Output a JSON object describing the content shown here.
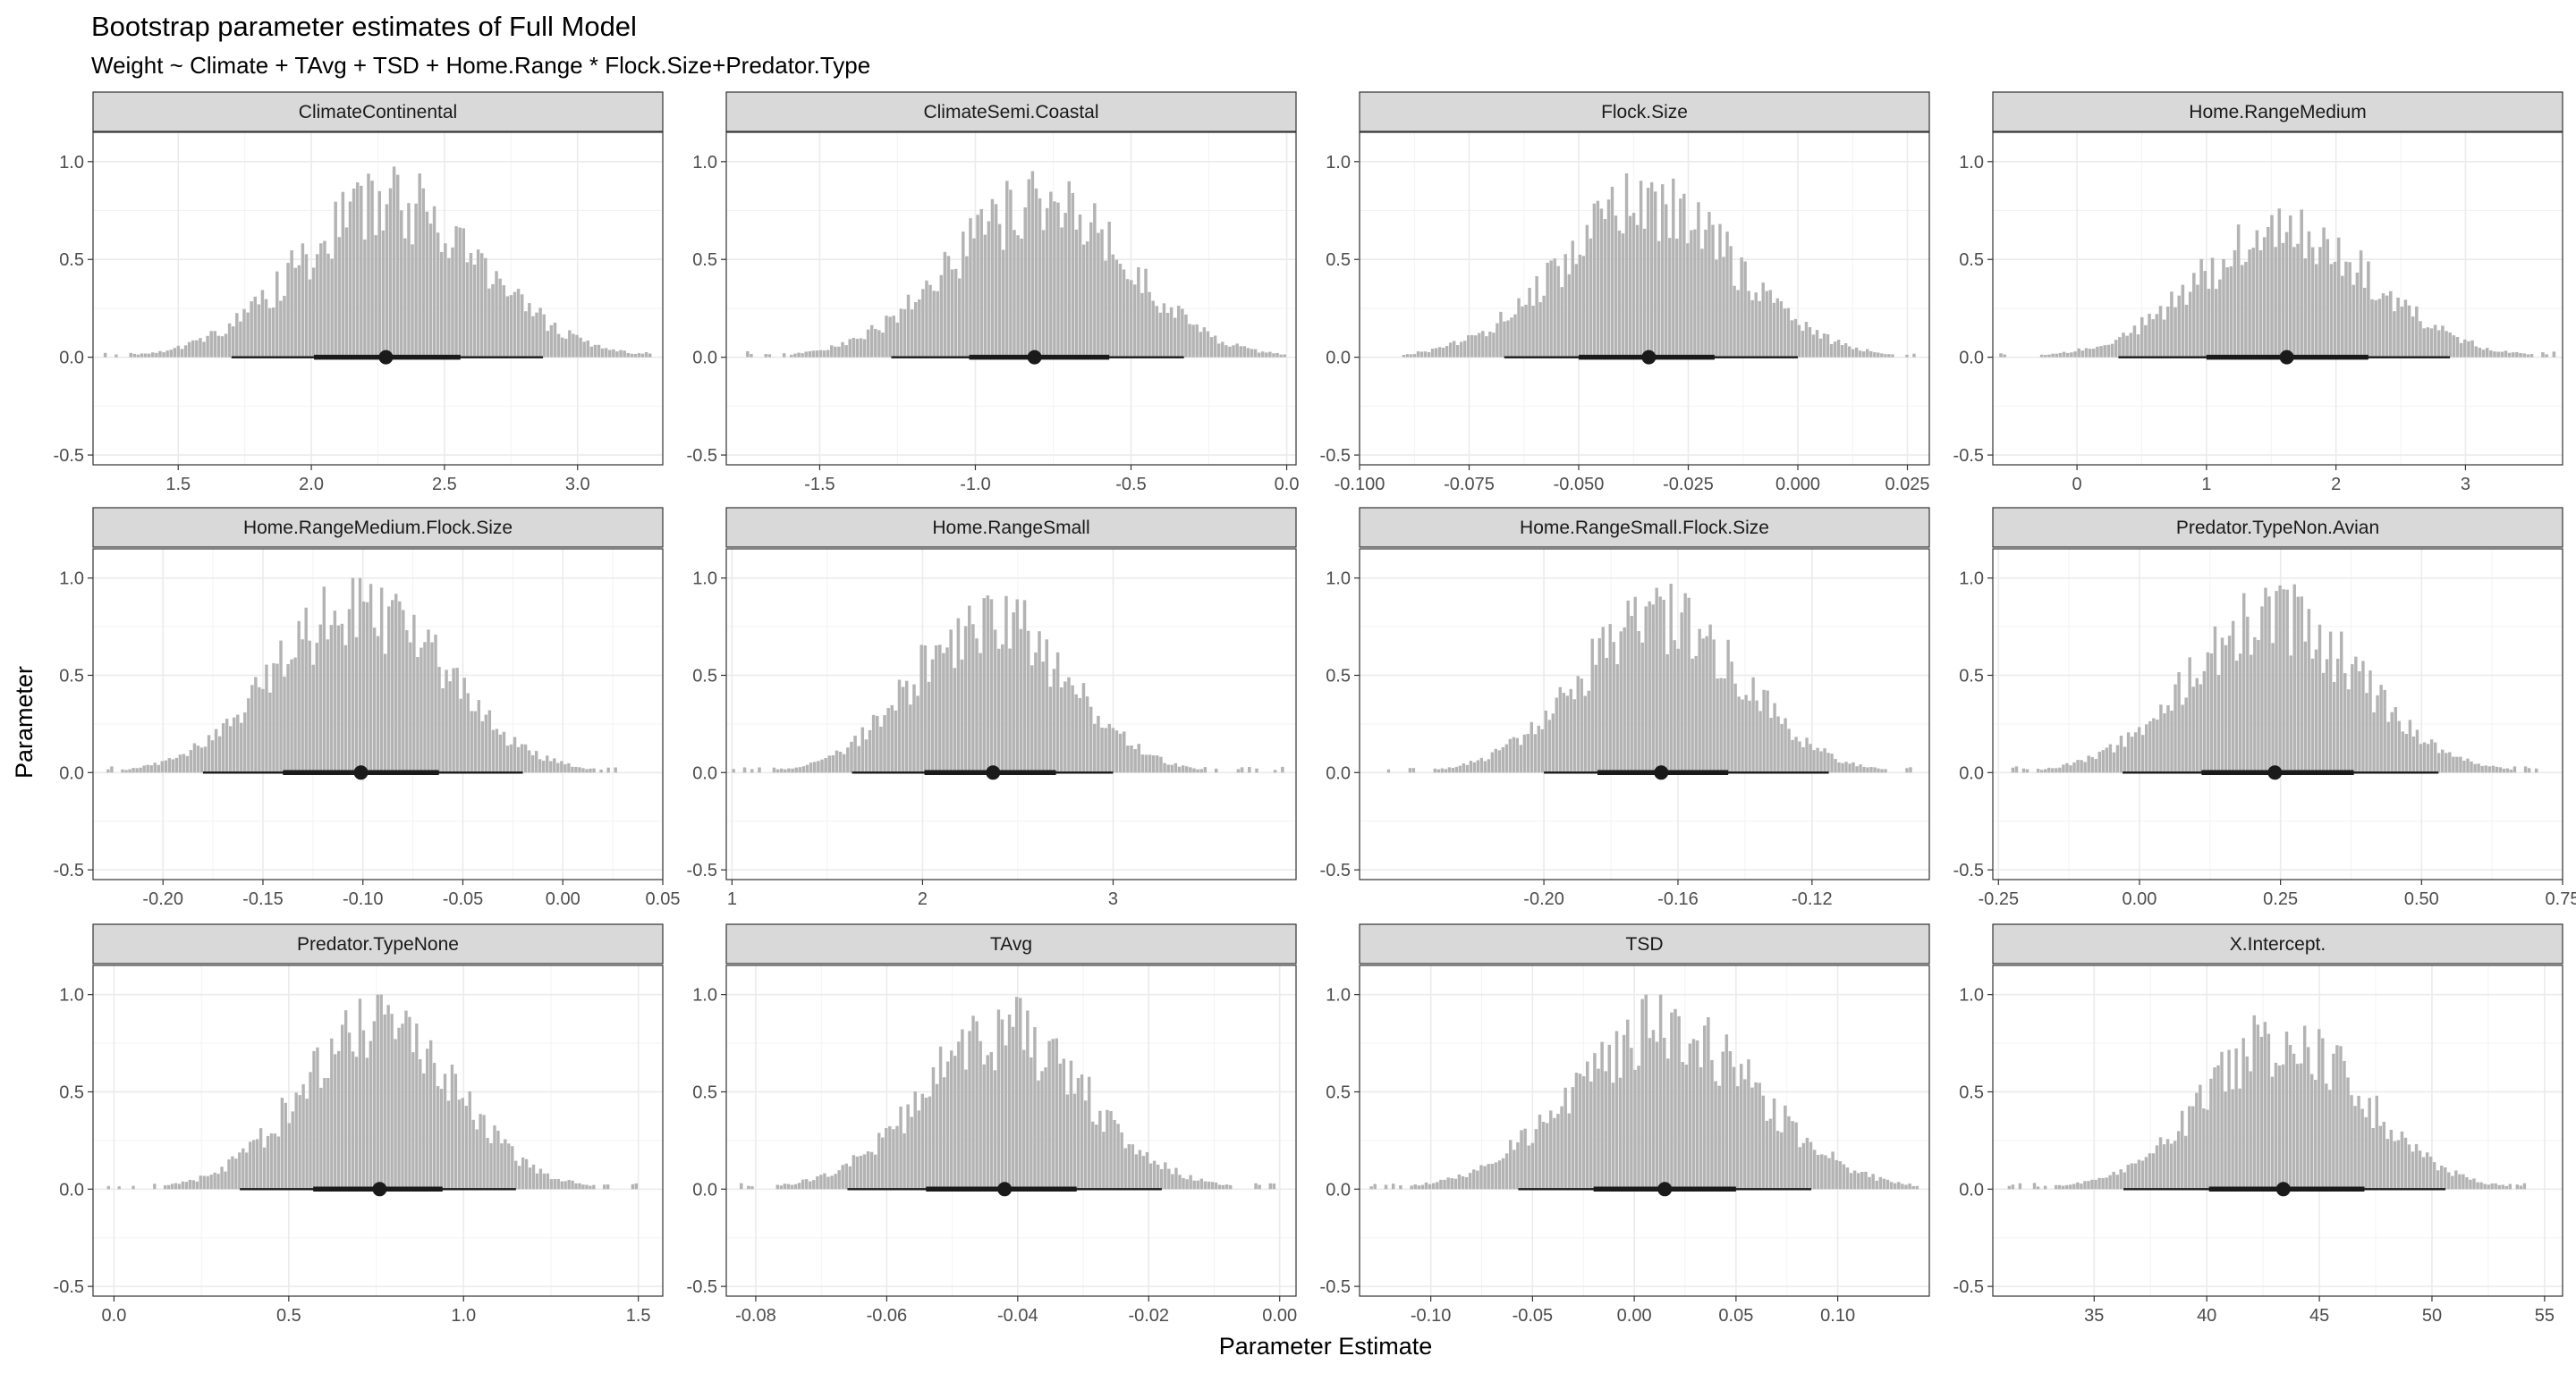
{
  "chart_data": {
    "type": "histogram-facets",
    "title": "Bootstrap parameter estimates of Full Model",
    "subtitle": "Weight ~ Climate + TAvg + TSD + Home.Range * Flock.Size+Predator.Type",
    "xlabel": "Parameter Estimate",
    "ylabel": "Parameter",
    "ylim": [
      -0.55,
      1.15
    ],
    "yticks": [
      -0.5,
      0.0,
      0.5,
      1.0
    ],
    "grid": true,
    "colors": {
      "bars": "#b3b3b3",
      "strip": "#d9d9d9",
      "interval": "#1a1a1a",
      "grid": "#ebebeb"
    },
    "facets": [
      {
        "name": "ClimateContinental",
        "xlim": [
          1.18,
          3.32
        ],
        "xticks": [
          1.5,
          2.0,
          2.5,
          3.0
        ],
        "xtick_labels": [
          "1.5",
          "2.0",
          "2.5",
          "3.0"
        ],
        "center": 2.3,
        "sd": 0.34,
        "peak": 0.82,
        "support": [
          1.22,
          3.28
        ],
        "interval_outer": [
          1.7,
          2.87
        ],
        "interval_inner": [
          2.01,
          2.56
        ],
        "point": 2.28
      },
      {
        "name": "ClimateSemi.Coastal",
        "xlim": [
          -1.8,
          0.03
        ],
        "xticks": [
          -1.5,
          -1.0,
          -0.5,
          0.0
        ],
        "xtick_labels": [
          "-1.5",
          "-1.0",
          "-0.5",
          "0.0"
        ],
        "center": -0.8,
        "sd": 0.28,
        "peak": 0.82,
        "support": [
          -1.76,
          0.0
        ],
        "interval_outer": [
          -1.27,
          -0.33
        ],
        "interval_inner": [
          -1.02,
          -0.57
        ],
        "point": -0.81
      },
      {
        "name": "Flock.Size",
        "xlim": [
          -0.1,
          0.03
        ],
        "xticks": [
          -0.1,
          -0.075,
          -0.05,
          -0.025,
          0.0,
          0.025
        ],
        "xtick_labels": [
          "-0.100",
          "-0.075",
          "-0.050",
          "-0.025",
          "0.000",
          "0.025"
        ],
        "center": -0.034,
        "sd": 0.02,
        "peak": 0.8,
        "support": [
          -0.096,
          0.027
        ],
        "interval_outer": [
          -0.067,
          0.0
        ],
        "interval_inner": [
          -0.05,
          -0.019
        ],
        "point": -0.034
      },
      {
        "name": "Home.RangeMedium",
        "xlim": [
          -0.65,
          3.75
        ],
        "xticks": [
          0,
          1,
          2,
          3
        ],
        "xtick_labels": [
          "0",
          "1",
          "2",
          "3"
        ],
        "center": 1.62,
        "sd": 0.68,
        "peak": 0.66,
        "support": [
          -0.6,
          3.7
        ],
        "interval_outer": [
          0.32,
          2.88
        ],
        "interval_inner": [
          1.0,
          2.25
        ],
        "point": 1.62
      },
      {
        "name": "Home.RangeMedium.Flock.Size",
        "xlim": [
          -0.235,
          0.05
        ],
        "xticks": [
          -0.2,
          -0.15,
          -0.1,
          -0.05,
          0.0,
          0.05
        ],
        "xtick_labels": [
          "-0.20",
          "-0.15",
          "-0.10",
          "-0.05",
          "0.00",
          "0.05"
        ],
        "center": -0.101,
        "sd": 0.042,
        "peak": 0.88,
        "support": [
          -0.23,
          0.04
        ],
        "interval_outer": [
          -0.18,
          -0.02
        ],
        "interval_inner": [
          -0.14,
          -0.062
        ],
        "point": -0.101
      },
      {
        "name": "Home.RangeSmall",
        "xlim": [
          0.97,
          3.96
        ],
        "xticks": [
          1,
          2,
          3
        ],
        "xtick_labels": [
          "1",
          "2",
          "3"
        ],
        "center": 2.36,
        "sd": 0.4,
        "peak": 0.82,
        "support": [
          1.0,
          3.9
        ],
        "interval_outer": [
          1.63,
          3.0
        ],
        "interval_inner": [
          2.01,
          2.7
        ],
        "point": 2.37
      },
      {
        "name": "Home.RangeSmall.Flock.Size",
        "xlim": [
          -0.255,
          -0.085
        ],
        "xticks": [
          -0.2,
          -0.16,
          -0.12
        ],
        "xtick_labels": [
          "-0.20",
          "-0.16",
          "-0.12"
        ],
        "center": -0.165,
        "sd": 0.024,
        "peak": 0.84,
        "support": [
          -0.25,
          -0.09
        ],
        "interval_outer": [
          -0.2,
          -0.115
        ],
        "interval_inner": [
          -0.184,
          -0.145
        ],
        "point": -0.165
      },
      {
        "name": "Predator.TypeNon.Avian",
        "xlim": [
          -0.26,
          0.75
        ],
        "xticks": [
          -0.25,
          0.0,
          0.25,
          0.5,
          0.75
        ],
        "xtick_labels": [
          "-0.25",
          "0.00",
          "0.25",
          "0.50",
          "0.75"
        ],
        "center": 0.24,
        "sd": 0.15,
        "peak": 0.82,
        "support": [
          -0.24,
          0.72
        ],
        "interval_outer": [
          -0.03,
          0.53
        ],
        "interval_inner": [
          0.11,
          0.38
        ],
        "point": 0.24
      },
      {
        "name": "Predator.TypeNone",
        "xlim": [
          -0.06,
          1.57
        ],
        "xticks": [
          0.0,
          0.5,
          1.0,
          1.5
        ],
        "xtick_labels": [
          "0.0",
          "0.5",
          "1.0",
          "1.5"
        ],
        "center": 0.76,
        "sd": 0.22,
        "peak": 0.86,
        "support": [
          -0.02,
          1.5
        ],
        "interval_outer": [
          0.36,
          1.15
        ],
        "interval_inner": [
          0.57,
          0.94
        ],
        "point": 0.76
      },
      {
        "name": "TAvg",
        "xlim": [
          -0.0845,
          0.0025
        ],
        "xticks": [
          -0.08,
          -0.06,
          -0.04,
          -0.02,
          0.0
        ],
        "xtick_labels": [
          "-0.08",
          "-0.06",
          "-0.04",
          "-0.02",
          "0.00"
        ],
        "center": -0.042,
        "sd": 0.0125,
        "peak": 0.84,
        "support": [
          -0.083,
          0.0
        ],
        "interval_outer": [
          -0.066,
          -0.018
        ],
        "interval_inner": [
          -0.054,
          -0.031
        ],
        "point": -0.042
      },
      {
        "name": "TSD",
        "xlim": [
          -0.135,
          0.145
        ],
        "xticks": [
          -0.1,
          -0.05,
          0.0,
          0.05,
          0.1
        ],
        "xtick_labels": [
          "-0.10",
          "-0.05",
          "0.00",
          "0.05",
          "0.10"
        ],
        "center": 0.015,
        "sd": 0.045,
        "peak": 0.86,
        "support": [
          -0.13,
          0.14
        ],
        "interval_outer": [
          -0.057,
          0.087
        ],
        "interval_inner": [
          -0.02,
          0.05
        ],
        "point": 0.015
      },
      {
        "name": "X.Intercept.",
        "xlim": [
          30.5,
          55.8
        ],
        "xticks": [
          35,
          40,
          45,
          50,
          55
        ],
        "xtick_labels": [
          "35",
          "40",
          "45",
          "50",
          "55"
        ],
        "center": 43.4,
        "sd": 3.6,
        "peak": 0.78,
        "support": [
          31.0,
          55.0
        ],
        "interval_outer": [
          36.3,
          50.6
        ],
        "interval_inner": [
          40.1,
          47.0
        ],
        "point": 43.4
      }
    ]
  }
}
